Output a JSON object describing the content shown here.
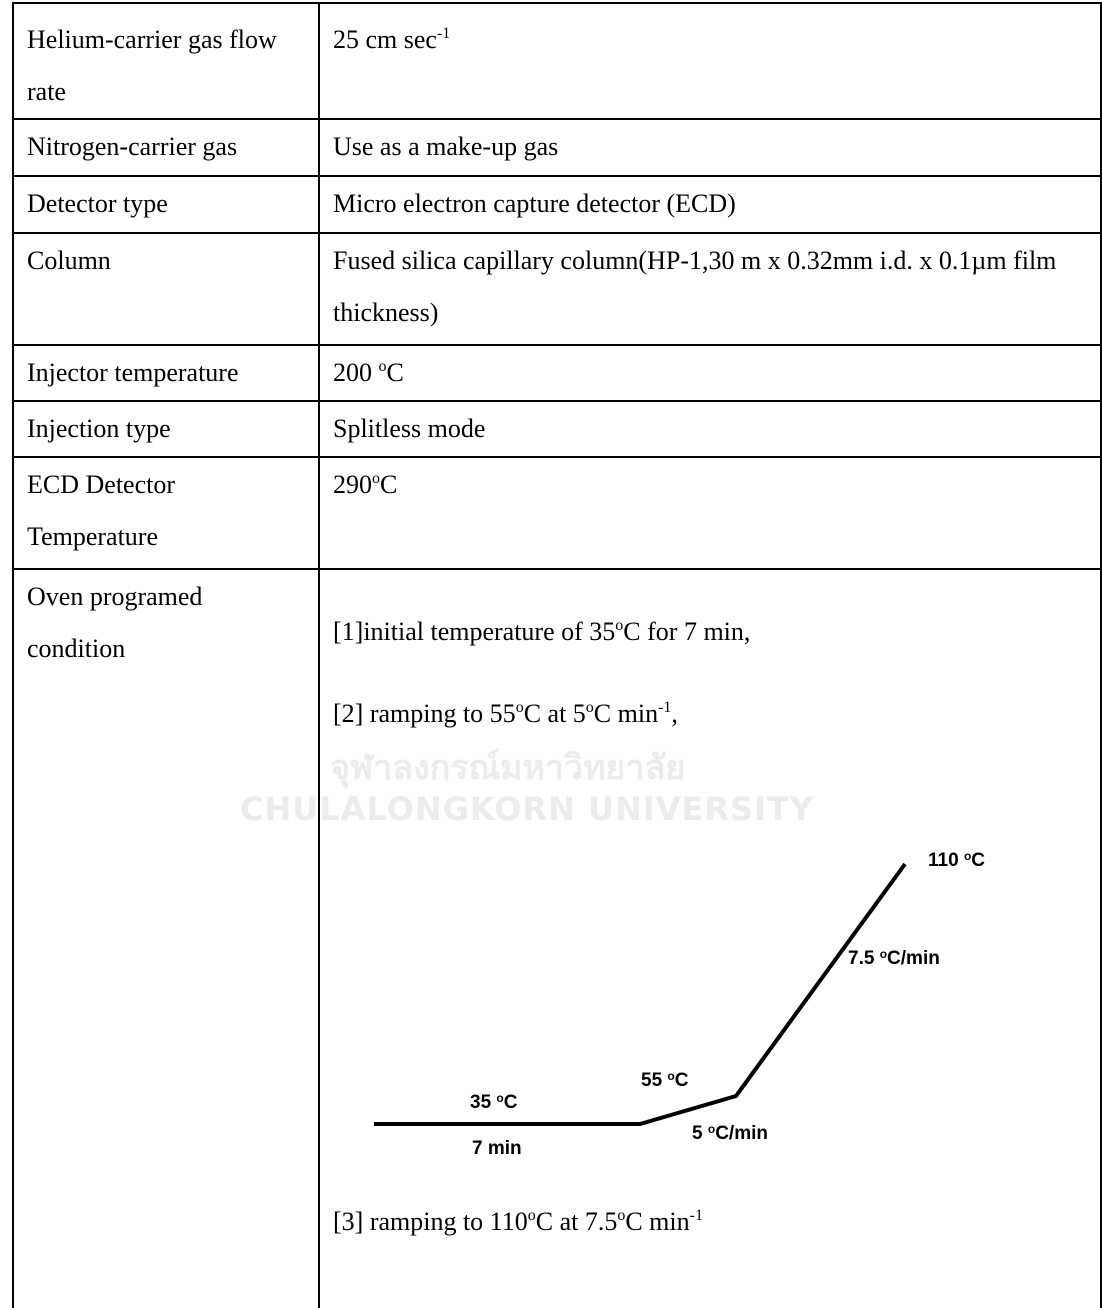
{
  "table": {
    "rows": [
      {
        "label": "Helium-carrier gas flow rate",
        "value": [
          "25 cm sec",
          {
            "sup": "-1"
          }
        ]
      },
      {
        "label": "Nitrogen-carrier gas",
        "value": [
          "Use as a make-up gas"
        ]
      },
      {
        "label": "Detector type",
        "value": [
          "Micro electron capture detector (ECD)"
        ]
      },
      {
        "label": "Column",
        "value": [
          "Fused silica capillary column(HP-1,30 m x 0.32mm i.d. x 0.1µm film thickness)"
        ]
      },
      {
        "label": "Injector temperature",
        "value": [
          "200 ",
          {
            "sup": "o"
          },
          "C"
        ]
      },
      {
        "label": "Injection type",
        "value": [
          "Splitless mode"
        ]
      },
      {
        "label": "ECD Detector Temperature",
        "value": [
          "290",
          {
            "sup": "o"
          },
          "C"
        ]
      },
      {
        "label": "Oven programed condition",
        "steps": [
          [
            "[1]initial temperature of 35",
            {
              "sup": "o"
            },
            "C for 7 min,"
          ],
          [
            "[2] ramping to 55",
            {
              "sup": "o"
            },
            "C at 5",
            {
              "sup": "o"
            },
            "C min",
            {
              "sup": "-1"
            },
            ","
          ],
          [
            "[3] ramping to 110",
            {
              "sup": "o"
            },
            "C at 7.5",
            {
              "sup": "o"
            },
            "C min",
            {
              "sup": "-1"
            }
          ]
        ]
      }
    ]
  },
  "diagram": {
    "labels": [
      [
        "110 ",
        {
          "sup": "o"
        },
        "C"
      ],
      [
        "7.5 ",
        {
          "sup": "o"
        },
        "C/min"
      ],
      [
        "55 ",
        {
          "sup": "o"
        },
        "C"
      ],
      [
        "35 ",
        {
          "sup": "o"
        },
        "C"
      ],
      [
        "7 min"
      ],
      [
        "5 ",
        {
          "sup": "o"
        },
        "C/min"
      ]
    ]
  },
  "watermark": {
    "thai": "จุฬาลงกรณ์มหาวิทยาลัย",
    "english": "CHULALONGKORN UNIVERSITY"
  }
}
